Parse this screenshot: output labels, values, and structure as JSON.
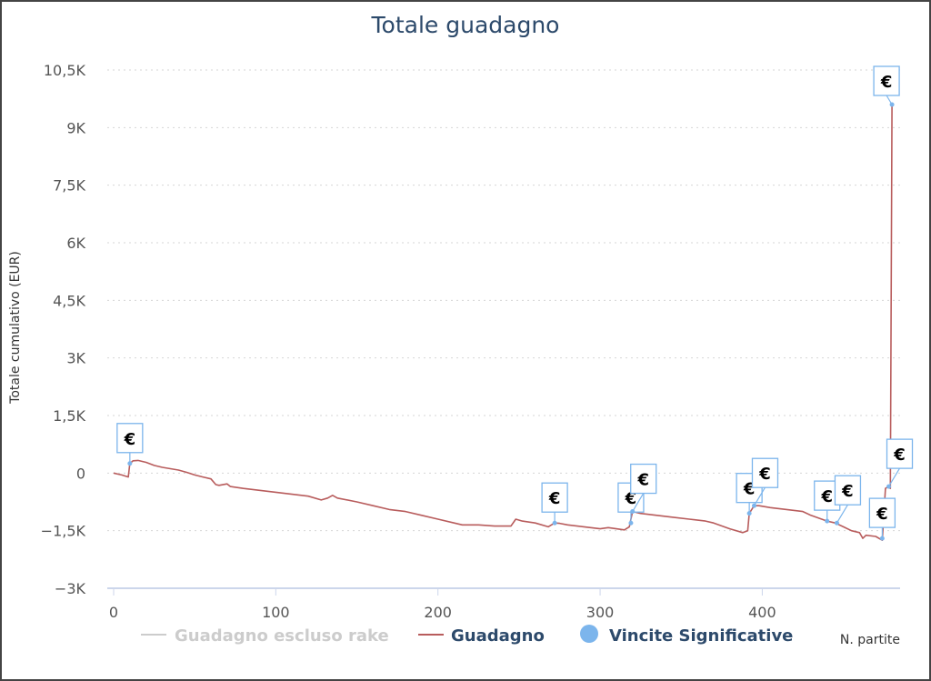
{
  "chart_data": {
    "type": "line",
    "title": "Totale guadagno",
    "ylabel": "Totale cumulativo (EUR)",
    "xlabel": "N. partite",
    "xlim": [
      0,
      485
    ],
    "ylim": [
      -3000,
      10500
    ],
    "x_ticks": [
      0,
      100,
      200,
      300,
      400
    ],
    "y_ticks": [
      -3000,
      -1500,
      0,
      1500,
      3000,
      4500,
      6000,
      7500,
      9000,
      10500
    ],
    "y_tick_labels": [
      "−3K",
      "−1,5K",
      "0",
      "1,5K",
      "3K",
      "4,5K",
      "6K",
      "7,5K",
      "9K",
      "10,5K"
    ],
    "x_tick_labels": [
      "0",
      "100",
      "200",
      "300",
      "400"
    ],
    "grid": true,
    "legend_position": "bottom",
    "series": [
      {
        "name": "Guadagno escluso rake",
        "color": "#cccccc",
        "visible": false,
        "points": []
      },
      {
        "name": "Guadagno",
        "color": "#b85c5c",
        "visible": true,
        "points": [
          [
            0,
            0
          ],
          [
            5,
            -50
          ],
          [
            9,
            -100
          ],
          [
            10,
            250
          ],
          [
            12,
            320
          ],
          [
            15,
            330
          ],
          [
            20,
            280
          ],
          [
            25,
            200
          ],
          [
            30,
            150
          ],
          [
            40,
            80
          ],
          [
            45,
            20
          ],
          [
            50,
            -50
          ],
          [
            55,
            -100
          ],
          [
            60,
            -150
          ],
          [
            63,
            -300
          ],
          [
            65,
            -320
          ],
          [
            70,
            -280
          ],
          [
            72,
            -350
          ],
          [
            80,
            -400
          ],
          [
            90,
            -450
          ],
          [
            100,
            -500
          ],
          [
            110,
            -550
          ],
          [
            120,
            -600
          ],
          [
            128,
            -700
          ],
          [
            132,
            -650
          ],
          [
            135,
            -580
          ],
          [
            138,
            -650
          ],
          [
            150,
            -750
          ],
          [
            160,
            -850
          ],
          [
            170,
            -950
          ],
          [
            180,
            -1000
          ],
          [
            190,
            -1100
          ],
          [
            200,
            -1200
          ],
          [
            210,
            -1300
          ],
          [
            215,
            -1350
          ],
          [
            225,
            -1350
          ],
          [
            235,
            -1380
          ],
          [
            245,
            -1380
          ],
          [
            248,
            -1200
          ],
          [
            252,
            -1250
          ],
          [
            260,
            -1300
          ],
          [
            268,
            -1400
          ],
          [
            272,
            -1300
          ],
          [
            275,
            -1310
          ],
          [
            280,
            -1350
          ],
          [
            290,
            -1400
          ],
          [
            300,
            -1450
          ],
          [
            305,
            -1420
          ],
          [
            315,
            -1480
          ],
          [
            318,
            -1400
          ],
          [
            320,
            -1000
          ],
          [
            325,
            -1050
          ],
          [
            335,
            -1100
          ],
          [
            345,
            -1150
          ],
          [
            355,
            -1200
          ],
          [
            365,
            -1250
          ],
          [
            370,
            -1300
          ],
          [
            380,
            -1450
          ],
          [
            388,
            -1550
          ],
          [
            391,
            -1500
          ],
          [
            392,
            -1050
          ],
          [
            395,
            -850
          ],
          [
            398,
            -850
          ],
          [
            405,
            -900
          ],
          [
            415,
            -950
          ],
          [
            425,
            -1000
          ],
          [
            430,
            -1100
          ],
          [
            440,
            -1250
          ],
          [
            445,
            -1300
          ],
          [
            450,
            -1400
          ],
          [
            455,
            -1500
          ],
          [
            460,
            -1550
          ],
          [
            462,
            -1700
          ],
          [
            464,
            -1620
          ],
          [
            470,
            -1650
          ],
          [
            474,
            -1750
          ],
          [
            476,
            -400
          ],
          [
            478,
            -350
          ],
          [
            479,
            -400
          ],
          [
            480,
            9600
          ]
        ]
      }
    ],
    "markers": {
      "name": "Vincite Significative",
      "color": "#7cb5ec",
      "symbol": "€",
      "points": [
        [
          10,
          250
        ],
        [
          272,
          -1300
        ],
        [
          319,
          -1300
        ],
        [
          320,
          -1000
        ],
        [
          392,
          -1050
        ],
        [
          395,
          -850
        ],
        [
          440,
          -1250
        ],
        [
          446,
          -1300
        ],
        [
          474,
          -1700
        ],
        [
          478,
          -350
        ],
        [
          480,
          9600
        ]
      ]
    }
  }
}
